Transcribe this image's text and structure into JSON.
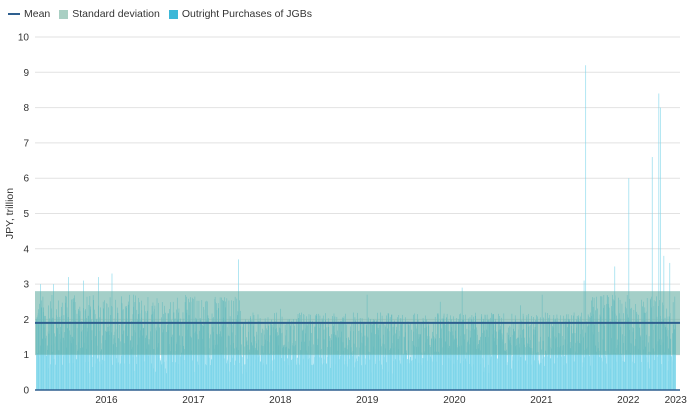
{
  "chart_data": {
    "type": "bar",
    "title": "",
    "ylabel": "JPY, trillion",
    "xlabel": "",
    "ylim": [
      0,
      10
    ],
    "yticks": [
      "0",
      "1",
      "2",
      "3",
      "4",
      "5",
      "6",
      "7",
      "8",
      "9",
      "10"
    ],
    "x_tick_labels": [
      "2016",
      "2017",
      "2018",
      "2019",
      "2020",
      "2021",
      "2022",
      "2023"
    ],
    "grid": true,
    "legend_position": "top-left",
    "legend": [
      {
        "name": "Mean",
        "kind": "line",
        "color": "#2e5f8f"
      },
      {
        "name": "Standard deviation",
        "kind": "box",
        "color": "#a9cfc3"
      },
      {
        "name": "Outright Purchases of JGBs",
        "kind": "box",
        "color": "#3cb8d8"
      }
    ],
    "colors": {
      "bars": "#7fd6ea",
      "band": "#5aa89a",
      "mean": "#2e5f8f",
      "grid": "#e2e2e2",
      "text": "#333333"
    },
    "mean": 1.9,
    "std_band": [
      1.0,
      2.8
    ],
    "series": [
      {
        "name": "Outright Purchases of JGBs",
        "period": "business days, late 2015 to early 2023 (approx.)",
        "peaks": [
          {
            "date": "2015-09-10",
            "value": 3.0
          },
          {
            "date": "2015-11-05",
            "value": 3.0
          },
          {
            "date": "2016-01-07",
            "value": 3.2
          },
          {
            "date": "2016-03-10",
            "value": 3.1
          },
          {
            "date": "2016-05-12",
            "value": 3.2
          },
          {
            "date": "2016-07-07",
            "value": 3.3
          },
          {
            "date": "2016-10-05",
            "value": 2.7
          },
          {
            "date": "2017-01-12",
            "value": 2.6
          },
          {
            "date": "2017-06-08",
            "value": 2.5
          },
          {
            "date": "2017-12-20",
            "value": 3.7
          },
          {
            "date": "2018-06-14",
            "value": 2.3
          },
          {
            "date": "2019-06-13",
            "value": 2.7
          },
          {
            "date": "2020-04-15",
            "value": 2.5
          },
          {
            "date": "2020-07-16",
            "value": 2.9
          },
          {
            "date": "2021-03-18",
            "value": 2.4
          },
          {
            "date": "2021-06-17",
            "value": 2.7
          },
          {
            "date": "2021-12-10",
            "value": 3.1
          },
          {
            "date": "2021-12-17",
            "value": 9.2
          },
          {
            "date": "2022-04-18",
            "value": 3.5
          },
          {
            "date": "2022-06-16",
            "value": 6.0
          },
          {
            "date": "2022-09-22",
            "value": 6.6
          },
          {
            "date": "2022-10-20",
            "value": 8.4
          },
          {
            "date": "2022-10-26",
            "value": 8.0
          },
          {
            "date": "2022-11-10",
            "value": 3.8
          },
          {
            "date": "2022-12-05",
            "value": 3.6
          }
        ],
        "typical_range": [
          0.7,
          2.7
        ]
      }
    ]
  }
}
